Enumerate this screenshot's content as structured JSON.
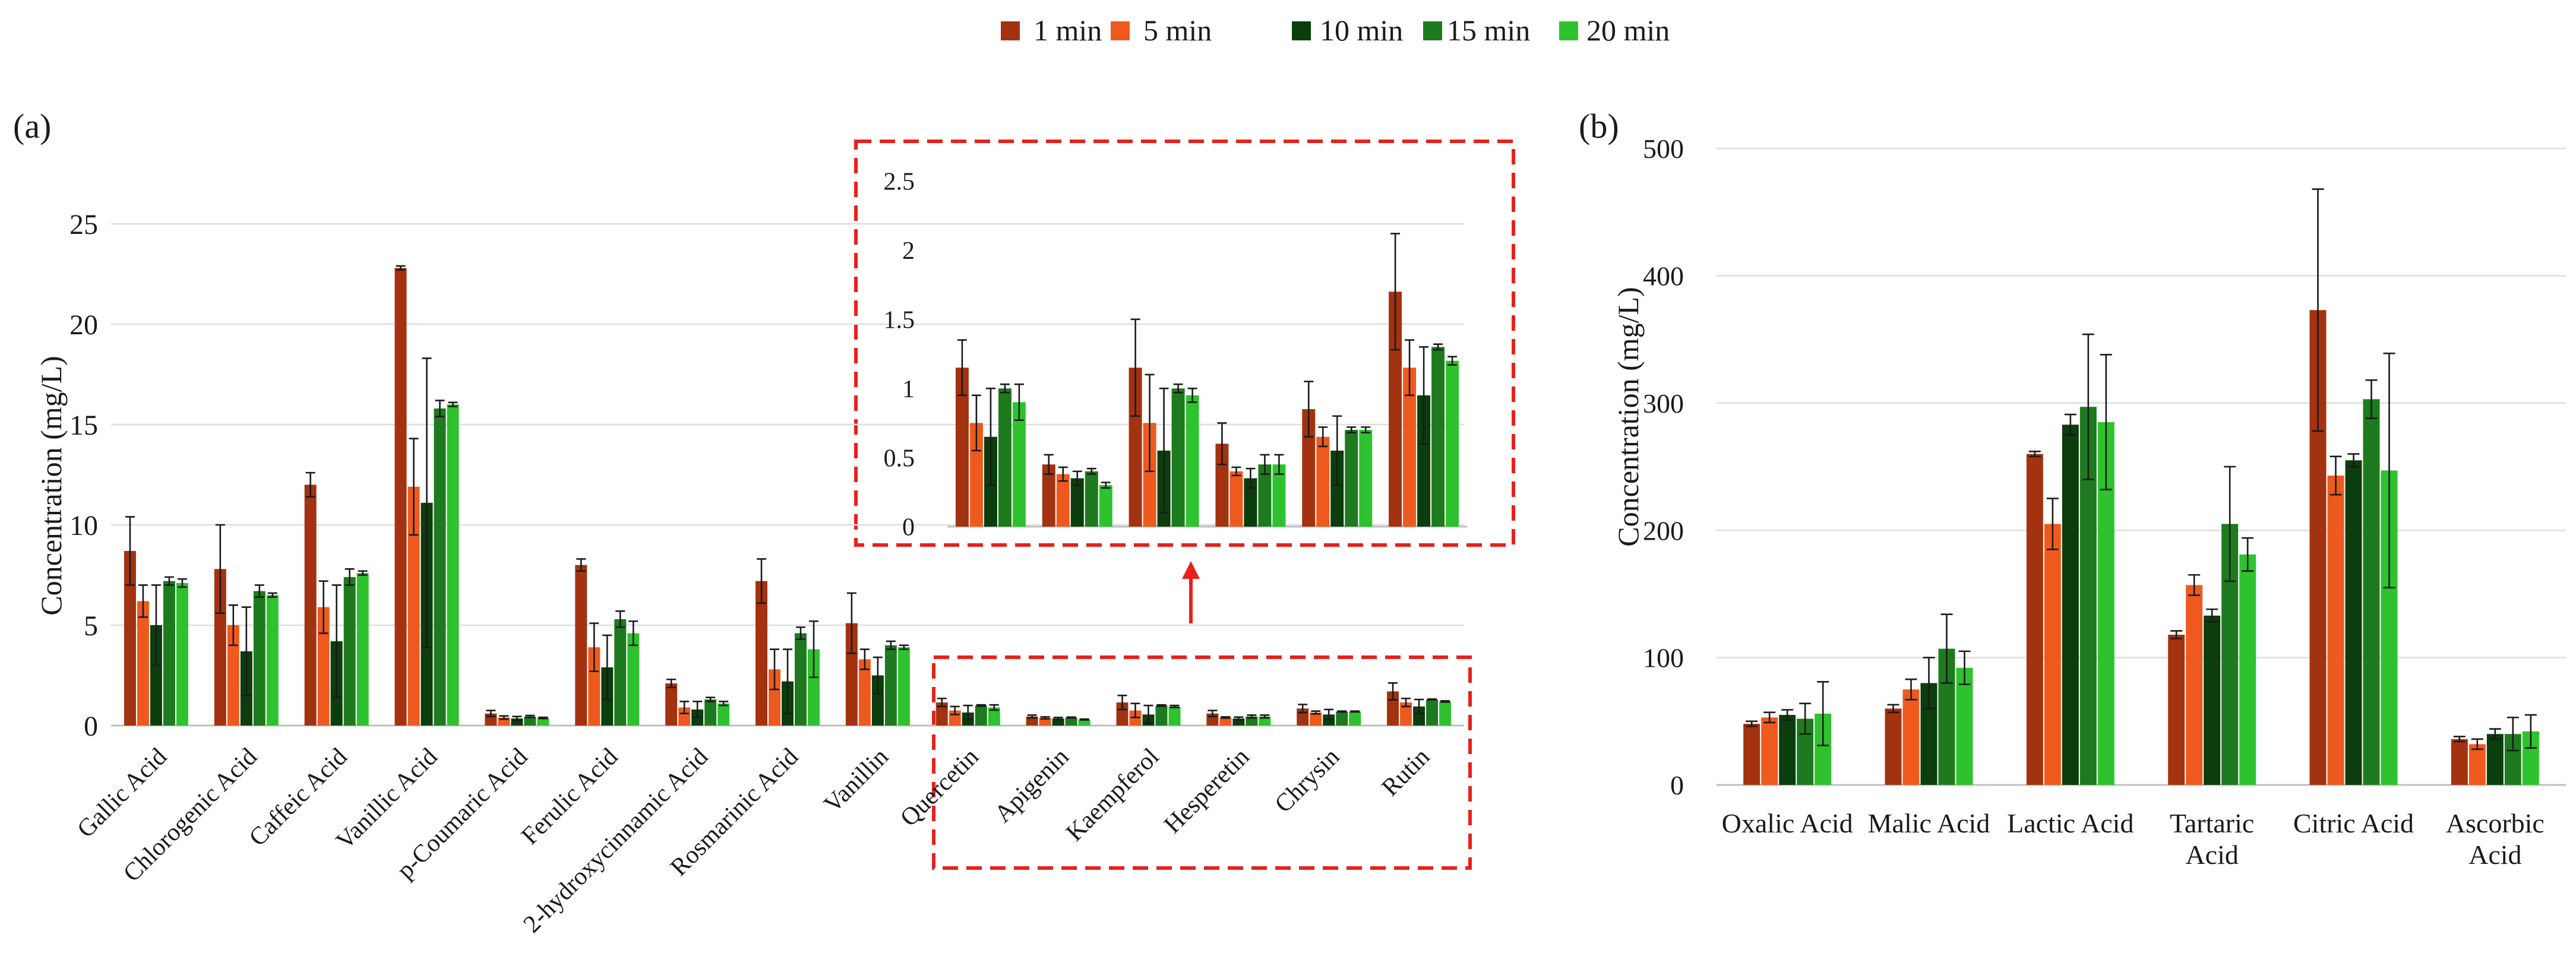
{
  "legend": {
    "entries": [
      {
        "label": "1 min",
        "color": "#a33210"
      },
      {
        "label": "5 min",
        "color": "#ee5a1e"
      },
      {
        "label": "10 min",
        "color": "#0c3d0c"
      },
      {
        "label": "15 min",
        "color": "#1e7a1e"
      },
      {
        "label": "20 min",
        "color": "#2ec22e"
      }
    ]
  },
  "chart_data": [
    {
      "type": "bar",
      "panel": "(a)",
      "title": "",
      "ylabel": "Concentration (mg/L)",
      "xlabel": "",
      "ylim": [
        0,
        25
      ],
      "yticks": [
        "0",
        "5",
        "10",
        "15",
        "20",
        "25"
      ],
      "grid": true,
      "categories": [
        "Gallic Acid",
        "Chlorogenic Acid",
        "Caffeic Acid",
        "Vanillic Acid",
        "p-Coumaric Acid",
        "Ferulic Acid",
        "2-hydroxycinnamic Acid",
        "Rosmarinic Acid",
        "Vanillin",
        "Quercetin",
        "Apigenin",
        "Kaempferol",
        "Hesperetin",
        "Chrysin",
        "Rutin"
      ],
      "series": [
        {
          "name": "1 min",
          "values": [
            8.7,
            7.8,
            12.0,
            22.8,
            0.6,
            8.0,
            2.1,
            7.2,
            5.1,
            1.15,
            0.45,
            1.15,
            0.6,
            0.85,
            1.7
          ],
          "errors": [
            1.7,
            2.2,
            0.6,
            0.1,
            0.15,
            0.3,
            0.2,
            1.1,
            1.5,
            0.2,
            0.07,
            0.35,
            0.15,
            0.2,
            0.42
          ]
        },
        {
          "name": "5 min",
          "values": [
            6.2,
            5.0,
            5.9,
            11.9,
            0.4,
            3.9,
            0.9,
            2.8,
            3.3,
            0.75,
            0.38,
            0.75,
            0.4,
            0.65,
            1.15
          ],
          "errors": [
            0.8,
            1.0,
            1.3,
            2.4,
            0.08,
            1.2,
            0.3,
            1.0,
            0.5,
            0.2,
            0.05,
            0.35,
            0.03,
            0.07,
            0.2
          ]
        },
        {
          "name": "10 min",
          "values": [
            5.0,
            3.7,
            4.2,
            11.1,
            0.35,
            2.9,
            0.8,
            2.2,
            2.5,
            0.65,
            0.35,
            0.55,
            0.35,
            0.55,
            0.95
          ],
          "errors": [
            2.0,
            2.2,
            2.8,
            7.2,
            0.1,
            1.6,
            0.4,
            1.6,
            0.9,
            0.35,
            0.05,
            0.45,
            0.07,
            0.25,
            0.35
          ]
        },
        {
          "name": "15 min",
          "values": [
            7.2,
            6.7,
            7.4,
            15.8,
            0.45,
            5.3,
            1.3,
            4.6,
            4.0,
            1.0,
            0.4,
            1.0,
            0.45,
            0.7,
            1.3
          ],
          "errors": [
            0.2,
            0.3,
            0.4,
            0.4,
            0.05,
            0.4,
            0.1,
            0.3,
            0.2,
            0.03,
            0.02,
            0.03,
            0.07,
            0.02,
            0.02
          ]
        },
        {
          "name": "20 min",
          "values": [
            7.1,
            6.5,
            7.6,
            16.0,
            0.38,
            4.6,
            1.1,
            3.8,
            3.9,
            0.9,
            0.3,
            0.95,
            0.45,
            0.7,
            1.2
          ],
          "errors": [
            0.2,
            0.1,
            0.1,
            0.1,
            0.03,
            0.6,
            0.1,
            1.4,
            0.1,
            0.13,
            0.02,
            0.05,
            0.07,
            0.02,
            0.03
          ]
        }
      ]
    },
    {
      "type": "bar",
      "panel": "(a) inset",
      "title": "",
      "ylabel": "",
      "ylim": [
        0,
        2.5
      ],
      "yticks": [
        "0",
        "0.5",
        "1",
        "1.5",
        "2",
        "2.5"
      ],
      "grid": false,
      "categories": [
        "Quercetin",
        "Apigenin",
        "Kaempferol",
        "Hesperetin",
        "Chrysin",
        "Rutin"
      ],
      "series": [
        {
          "name": "1 min",
          "values": [
            1.15,
            0.45,
            1.15,
            0.6,
            0.85,
            1.7
          ],
          "errors": [
            0.2,
            0.07,
            0.35,
            0.15,
            0.2,
            0.42
          ]
        },
        {
          "name": "5 min",
          "values": [
            0.75,
            0.38,
            0.75,
            0.4,
            0.65,
            1.15
          ],
          "errors": [
            0.2,
            0.05,
            0.35,
            0.03,
            0.07,
            0.2
          ]
        },
        {
          "name": "10 min",
          "values": [
            0.65,
            0.35,
            0.55,
            0.35,
            0.55,
            0.95
          ],
          "errors": [
            0.35,
            0.05,
            0.45,
            0.07,
            0.25,
            0.35
          ]
        },
        {
          "name": "15 min",
          "values": [
            1.0,
            0.4,
            1.0,
            0.45,
            0.7,
            1.3
          ],
          "errors": [
            0.03,
            0.02,
            0.03,
            0.07,
            0.02,
            0.02
          ]
        },
        {
          "name": "20 min",
          "values": [
            0.9,
            0.3,
            0.95,
            0.45,
            0.7,
            1.2
          ],
          "errors": [
            0.13,
            0.02,
            0.05,
            0.07,
            0.02,
            0.03
          ]
        }
      ]
    },
    {
      "type": "bar",
      "panel": "(b)",
      "title": "",
      "ylabel": "Concentration (mg/L)",
      "xlabel": "",
      "ylim": [
        0,
        500
      ],
      "yticks": [
        "0",
        "100",
        "200",
        "300",
        "400",
        "500"
      ],
      "grid": true,
      "categories": [
        "Oxalic Acid",
        "Malic Acid",
        "Lactic Acid",
        "Tartaric Acid",
        "Citric Acid",
        "Ascorbic Acid"
      ],
      "category_lines": [
        [
          "Oxalic Acid"
        ],
        [
          "Malic Acid"
        ],
        [
          "Lactic Acid"
        ],
        [
          "Tartaric",
          "Acid"
        ],
        [
          "Citric Acid"
        ],
        [
          "Ascorbic",
          "Acid"
        ]
      ],
      "series": [
        {
          "name": "1 min",
          "values": [
            48,
            60,
            260,
            118,
            373,
            36
          ],
          "errors": [
            2,
            3,
            2,
            3,
            95,
            2
          ]
        },
        {
          "name": "5 min",
          "values": [
            53,
            75,
            205,
            157,
            243,
            32
          ],
          "errors": [
            4,
            8,
            20,
            8,
            15,
            4
          ]
        },
        {
          "name": "10 min",
          "values": [
            55,
            80,
            283,
            133,
            255,
            40
          ],
          "errors": [
            4,
            20,
            8,
            5,
            5,
            4
          ]
        },
        {
          "name": "15 min",
          "values": [
            52,
            107,
            297,
            205,
            303,
            40
          ],
          "errors": [
            12,
            27,
            57,
            45,
            15,
            13
          ]
        },
        {
          "name": "20 min",
          "values": [
            56,
            92,
            285,
            181,
            247,
            42
          ],
          "errors": [
            25,
            13,
            53,
            13,
            92,
            13
          ]
        }
      ]
    }
  ],
  "panel_labels": {
    "a": "(a)",
    "b": "(b)"
  }
}
